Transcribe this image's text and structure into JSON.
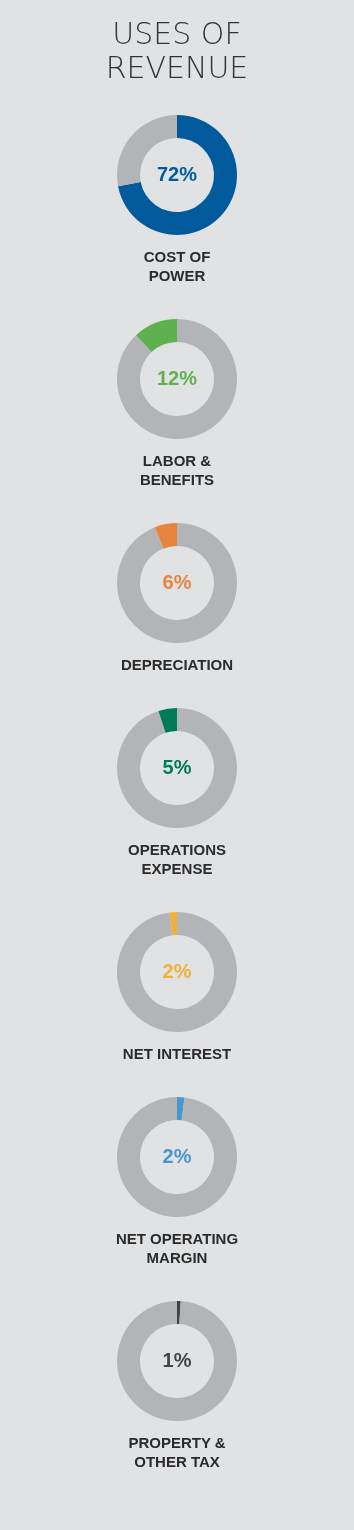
{
  "chart_data": [
    {
      "type": "donut",
      "title": "USES OF REVENUE",
      "xlabel": "COST OF POWER",
      "categories": [
        null,
        null
      ],
      "values": [
        72,
        28
      ],
      "colors": [
        "#005a9b",
        "#b3b4b7"
      ],
      "value_labels": [
        "72%",
        null
      ]
    },
    {
      "type": "donut",
      "xlabel": "LABOR & BENEFITS",
      "categories": [
        null,
        null
      ],
      "values": [
        88,
        12
      ],
      "colors": [
        "#b3b4b7",
        "#5fb14f"
      ],
      "value_labels": [
        null,
        "12%"
      ]
    },
    {
      "type": "donut",
      "xlabel": "DEPRECIATION",
      "categories": [
        null,
        null
      ],
      "values": [
        94,
        6
      ],
      "colors": [
        "#b3b4b7",
        "#e8843d"
      ],
      "value_labels": [
        null,
        "6%"
      ]
    },
    {
      "type": "donut",
      "xlabel": "OPERATIONS EXPENSE",
      "categories": [
        null,
        null
      ],
      "values": [
        95,
        5
      ],
      "colors": [
        "#b3b4b7",
        "#007a57"
      ],
      "value_labels": [
        null,
        "5%"
      ]
    },
    {
      "type": "donut",
      "xlabel": "NET INTEREST",
      "categories": [
        null,
        null
      ],
      "values": [
        98,
        2
      ],
      "colors": [
        "#b3b4b7",
        "#f0b13a"
      ],
      "value_labels": [
        null,
        "2%"
      ]
    },
    {
      "type": "donut",
      "xlabel": "NET OPERATING MARGIN",
      "categories": [
        null,
        null
      ],
      "values": [
        2,
        98
      ],
      "colors": [
        "#4896cf",
        "#b3b4b7"
      ],
      "value_labels": [
        "2%",
        null
      ]
    },
    {
      "type": "donut",
      "xlabel": "PROPERTY & OTHER TAX",
      "categories": [
        null,
        null
      ],
      "values": [
        1,
        99
      ],
      "colors": [
        "#444446",
        "#b3b4b7"
      ],
      "value_labels": [
        "1%",
        null
      ]
    }
  ]
}
